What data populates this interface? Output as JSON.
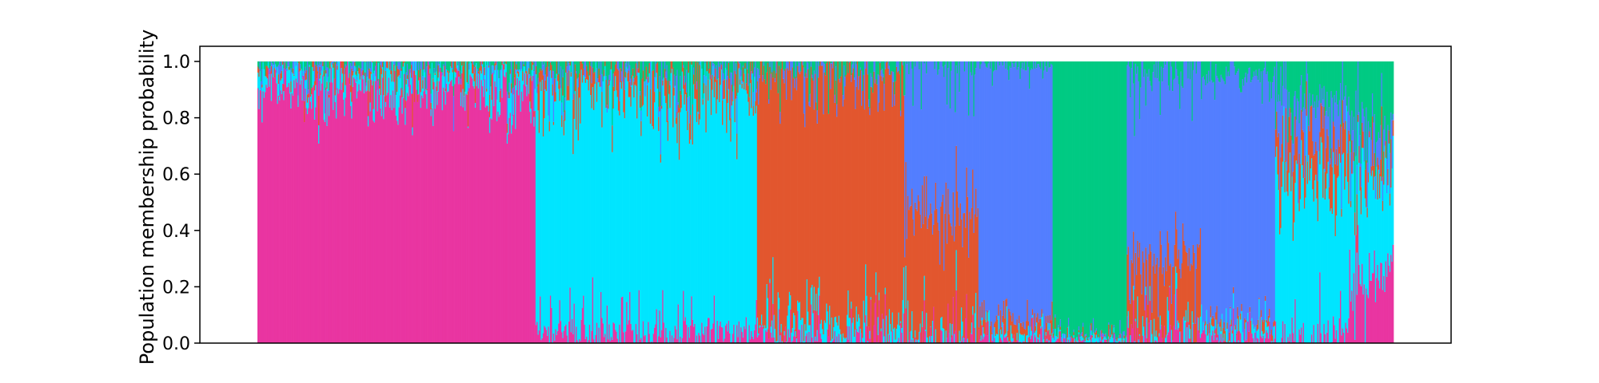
{
  "chart_data": {
    "type": "bar",
    "stacked": true,
    "title": "",
    "xlabel": "",
    "ylabel": "Population membership probability",
    "ylim": [
      0,
      1.0
    ],
    "yticks": [
      "0.0",
      "0.2",
      "0.4",
      "0.6",
      "0.8",
      "1.0"
    ],
    "grid": false,
    "legend": "none",
    "series_colors": {
      "pink": "#E935A1",
      "cyan": "#00E5FF",
      "orange": "#E2562E",
      "blue": "#537EFF",
      "green": "#00CA83"
    },
    "stack_order": [
      "pink",
      "cyan",
      "orange",
      "blue",
      "green"
    ],
    "groups": [
      {
        "size": 270,
        "base": {
          "pink": 0.93,
          "cyan": 0.05,
          "orange": 0.01,
          "blue": 0.005,
          "green": 0.005
        },
        "noise": 0.06
      },
      {
        "size": 215,
        "base": {
          "pink": 0.04,
          "cyan": 0.86,
          "orange": 0.06,
          "blue": 0.01,
          "green": 0.03
        },
        "noise": 0.08
      },
      {
        "size": 143,
        "base": {
          "pink": 0.02,
          "cyan": 0.05,
          "orange": 0.9,
          "blue": 0.01,
          "green": 0.02
        },
        "noise": 0.08
      },
      {
        "size": 72,
        "base": {
          "pink": 0.005,
          "cyan": 0.005,
          "orange": 0.45,
          "blue": 0.53,
          "green": 0.01
        },
        "noise": 0.1
      },
      {
        "size": 72,
        "base": {
          "pink": 0.01,
          "cyan": 0.02,
          "orange": 0.04,
          "blue": 0.92,
          "green": 0.01
        },
        "noise": 0.04
      },
      {
        "size": 72,
        "base": {
          "pink": 0.005,
          "cyan": 0.01,
          "orange": 0.005,
          "blue": 0.005,
          "green": 0.975
        },
        "noise": 0.02
      },
      {
        "size": 72,
        "base": {
          "pink": 0.02,
          "cyan": 0.02,
          "orange": 0.25,
          "blue": 0.66,
          "green": 0.05
        },
        "noise": 0.1
      },
      {
        "size": 72,
        "base": {
          "pink": 0.02,
          "cyan": 0.03,
          "orange": 0.02,
          "blue": 0.88,
          "green": 0.05
        },
        "noise": 0.05
      },
      {
        "size": 72,
        "base": {
          "pink": 0.02,
          "cyan": 0.55,
          "orange": 0.15,
          "blue": 0.14,
          "green": 0.14
        },
        "noise": 0.12
      },
      {
        "size": 43,
        "base": {
          "pink": 0.24,
          "cyan": 0.35,
          "orange": 0.05,
          "blue": 0.12,
          "green": 0.24
        },
        "noise": 0.1
      }
    ]
  }
}
